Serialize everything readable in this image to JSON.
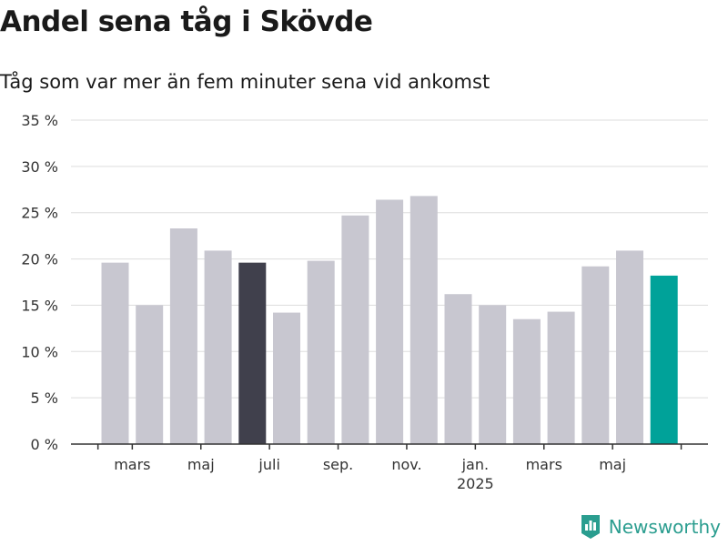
{
  "header": {
    "title": "Andel sena tåg i Skövde",
    "subtitle": "Tåg som var mer än fem minuter sena vid ankomst"
  },
  "brand": {
    "name": "Newsworthy",
    "icon": "bar-chart-badge-icon",
    "color": "#2a9d8f"
  },
  "colors": {
    "default": "#c8c7d0",
    "highlight_past": "#40404c",
    "highlight_current": "#00a299",
    "grid": "#dddddd",
    "axis": "#333333"
  },
  "chart_data": {
    "type": "bar",
    "title": "Andel sena tåg i Skövde",
    "subtitle": "Tåg som var mer än fem minuter sena vid ankomst",
    "x": [
      "2024-02",
      "2024-03",
      "2024-04",
      "2024-05",
      "2024-06",
      "2024-07",
      "2024-08",
      "2024-09",
      "2024-10",
      "2024-11",
      "2024-12",
      "2025-01",
      "2025-02",
      "2025-03",
      "2025-04",
      "2025-05",
      "2025-06"
    ],
    "values": [
      19.6,
      15.0,
      23.3,
      20.9,
      19.6,
      14.2,
      19.8,
      24.7,
      26.4,
      26.8,
      16.2,
      15.0,
      13.5,
      14.3,
      19.2,
      20.9,
      18.2
    ],
    "highlight": {
      "2024-06": "highlight_past",
      "2025-06": "highlight_current"
    },
    "ylim": [
      0,
      35
    ],
    "yticks": [
      0,
      5,
      10,
      15,
      20,
      25,
      30,
      35
    ],
    "ytick_labels": [
      "0 %",
      "5 %",
      "10 %",
      "15 %",
      "20 %",
      "25 %",
      "30 %",
      "35 %"
    ],
    "xticks": [
      {
        "x": "2024-03",
        "label": "mars"
      },
      {
        "x": "2024-05",
        "label": "maj"
      },
      {
        "x": "2024-07",
        "label": "juli"
      },
      {
        "x": "2024-09",
        "label": "sep."
      },
      {
        "x": "2024-11",
        "label": "nov."
      },
      {
        "x": "2025-01",
        "label": "jan.",
        "sublabel": "2025"
      },
      {
        "x": "2025-03",
        "label": "mars"
      },
      {
        "x": "2025-05",
        "label": "maj"
      }
    ],
    "xlabel": "",
    "ylabel": "",
    "grid": true,
    "legend": "none"
  }
}
